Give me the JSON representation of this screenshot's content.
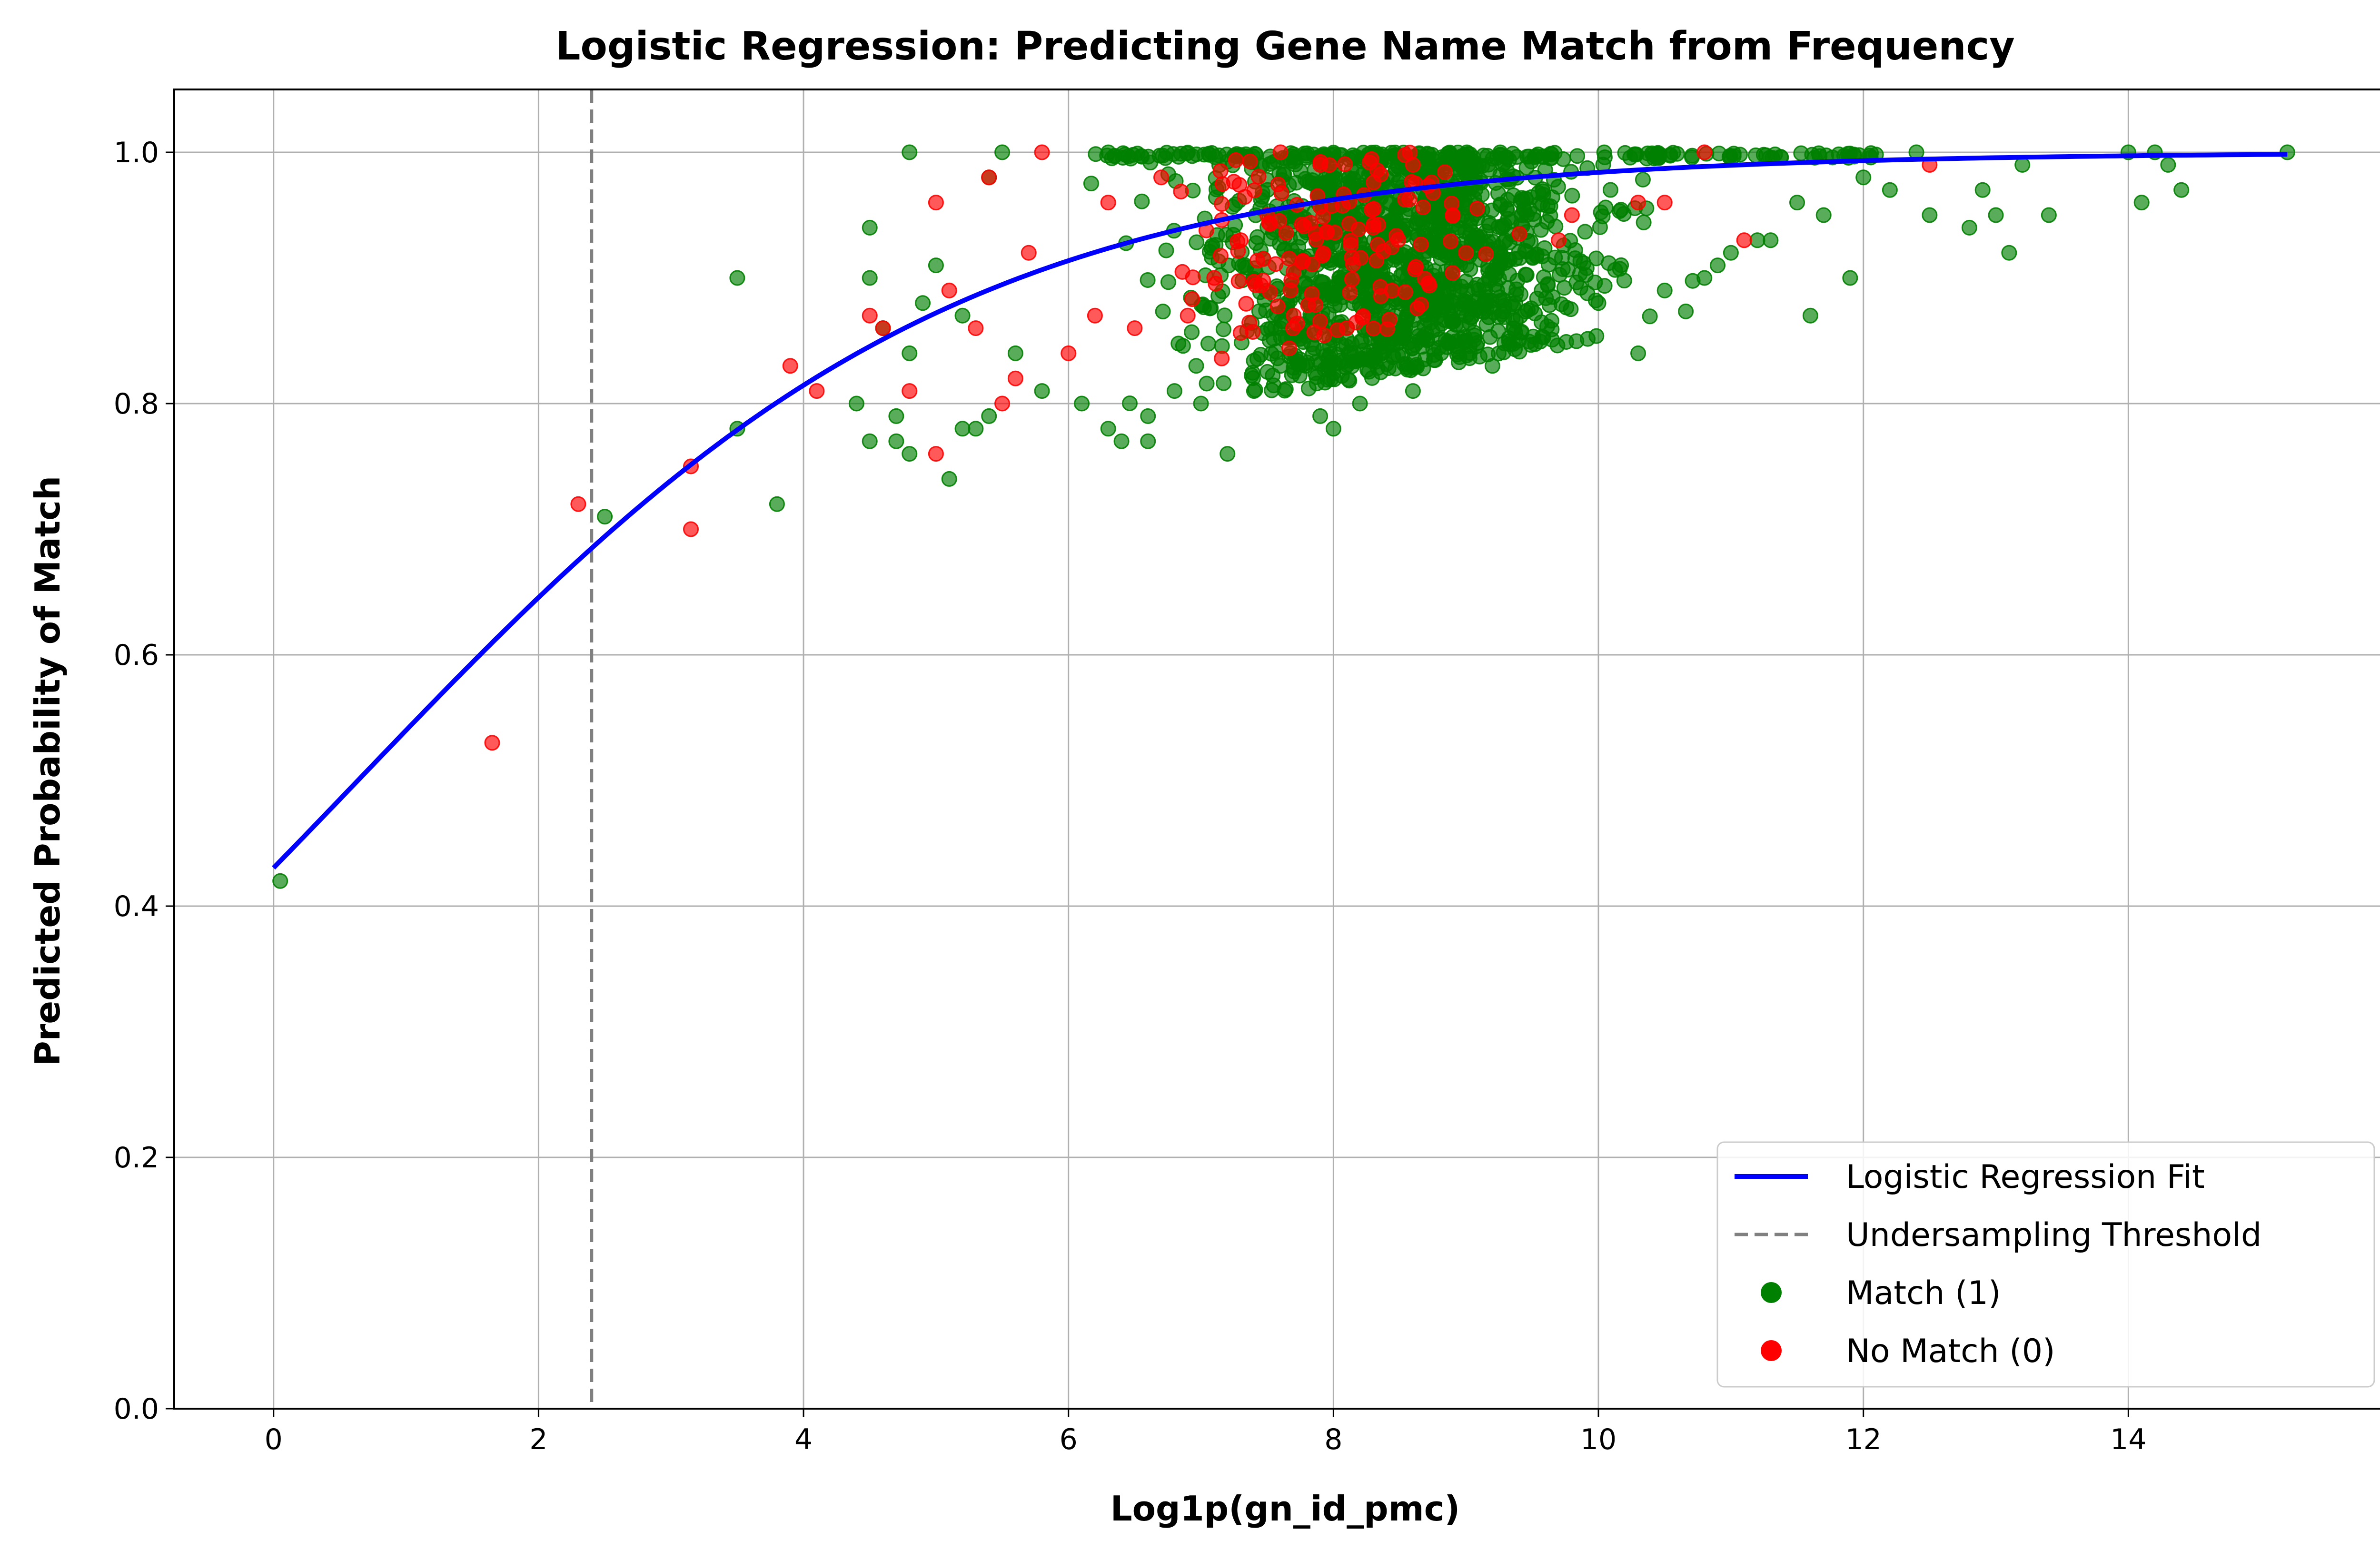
{
  "chart_data": {
    "type": "scatter",
    "title": "Logistic Regression: Predicting Gene Name Match from Frequency",
    "xlabel": "Log1p(gn_id_pmc)",
    "ylabel": "Predicted Probability of Match",
    "xlim": [
      -0.75,
      16.0
    ],
    "ylim": [
      0.0,
      1.05
    ],
    "xticks": [
      0,
      2,
      4,
      6,
      8,
      10,
      12,
      14
    ],
    "yticks": [
      0.0,
      0.2,
      0.4,
      0.6,
      0.8,
      1.0
    ],
    "xtick_labels": [
      "0",
      "2",
      "4",
      "6",
      "8",
      "10",
      "12",
      "14"
    ],
    "ytick_labels": [
      "0.0",
      "0.2",
      "0.4",
      "0.6",
      "0.8",
      "1.0"
    ],
    "grid": true,
    "legend_position": "bottom-right",
    "logistic_fit": {
      "intercept": -0.28,
      "slope": 0.44,
      "x_range": [
        0,
        15.2
      ]
    },
    "threshold_x": 2.4,
    "series": [
      {
        "name": "Logistic Regression Fit",
        "kind": "line",
        "color": "#0000ff"
      },
      {
        "name": "Undersampling Threshold",
        "kind": "dashed-line",
        "color": "#808080"
      },
      {
        "name": "Match (1)",
        "kind": "scatter",
        "color": "#008000",
        "points": [
          [
            0.05,
            0.42
          ],
          [
            2.5,
            0.71
          ],
          [
            3.5,
            0.9
          ],
          [
            3.5,
            0.78
          ],
          [
            3.8,
            0.72
          ],
          [
            4.4,
            0.8
          ],
          [
            4.5,
            0.77
          ],
          [
            4.5,
            0.9
          ],
          [
            4.6,
            0.86
          ],
          [
            4.7,
            0.79
          ],
          [
            4.7,
            0.77
          ],
          [
            4.8,
            0.76
          ],
          [
            4.8,
            1.0
          ],
          [
            4.5,
            0.94
          ],
          [
            5.1,
            0.74
          ],
          [
            5.2,
            0.78
          ],
          [
            5.3,
            0.78
          ],
          [
            5.4,
            0.79
          ],
          [
            5.5,
            1.0
          ],
          [
            5.4,
            0.98
          ],
          [
            5.0,
            0.91
          ],
          [
            4.9,
            0.88
          ],
          [
            4.8,
            0.84
          ],
          [
            5.2,
            0.87
          ],
          [
            5.6,
            0.84
          ],
          [
            5.8,
            0.81
          ],
          [
            6.1,
            0.8
          ],
          [
            6.3,
            0.78
          ],
          [
            6.4,
            0.77
          ],
          [
            6.6,
            0.79
          ],
          [
            6.6,
            0.77
          ],
          [
            6.8,
            0.81
          ],
          [
            7.0,
            0.8
          ],
          [
            7.2,
            0.76
          ],
          [
            7.4,
            0.81
          ],
          [
            7.6,
            0.83
          ],
          [
            7.9,
            0.79
          ],
          [
            8.0,
            0.78
          ],
          [
            8.2,
            0.8
          ],
          [
            8.6,
            0.81
          ],
          [
            9.2,
            0.83
          ],
          [
            9.4,
            0.85
          ],
          [
            10.0,
            0.88
          ],
          [
            10.3,
            0.84
          ],
          [
            10.5,
            0.89
          ],
          [
            10.9,
            0.91
          ],
          [
            11.0,
            0.92
          ],
          [
            11.3,
            0.93
          ],
          [
            11.6,
            0.87
          ],
          [
            11.9,
            0.9
          ],
          [
            12.0,
            0.98
          ],
          [
            12.2,
            0.97
          ],
          [
            12.4,
            1.0
          ],
          [
            12.5,
            0.95
          ],
          [
            12.8,
            0.94
          ],
          [
            12.9,
            0.97
          ],
          [
            13.0,
            0.95
          ],
          [
            13.1,
            0.92
          ],
          [
            13.2,
            0.99
          ],
          [
            13.4,
            0.95
          ],
          [
            14.0,
            1.0
          ],
          [
            14.1,
            0.96
          ],
          [
            14.2,
            1.0
          ],
          [
            14.3,
            0.99
          ],
          [
            14.4,
            0.97
          ],
          [
            15.2,
            1.0
          ],
          [
            10.8,
            0.9
          ],
          [
            11.2,
            0.93
          ],
          [
            11.5,
            0.96
          ],
          [
            11.7,
            0.95
          ]
        ]
      },
      {
        "name": "No Match (0)",
        "kind": "scatter",
        "color": "#ff0000",
        "points": [
          [
            1.65,
            0.53
          ],
          [
            2.3,
            0.72
          ],
          [
            3.15,
            0.7
          ],
          [
            3.15,
            0.75
          ],
          [
            3.9,
            0.83
          ],
          [
            4.1,
            0.81
          ],
          [
            4.5,
            0.87
          ],
          [
            4.6,
            0.86
          ],
          [
            4.8,
            0.81
          ],
          [
            5.0,
            0.76
          ],
          [
            5.0,
            0.96
          ],
          [
            5.1,
            0.89
          ],
          [
            5.3,
            0.86
          ],
          [
            5.4,
            0.98
          ],
          [
            5.5,
            0.8
          ],
          [
            5.6,
            0.82
          ],
          [
            5.7,
            0.92
          ],
          [
            5.8,
            1.0
          ],
          [
            6.0,
            0.84
          ],
          [
            6.2,
            0.87
          ],
          [
            6.3,
            0.96
          ],
          [
            6.5,
            0.86
          ],
          [
            6.9,
            0.87
          ],
          [
            7.1,
            0.9
          ],
          [
            7.3,
            0.93
          ],
          [
            7.5,
            0.95
          ],
          [
            7.7,
            0.87
          ],
          [
            7.9,
            0.99
          ],
          [
            8.1,
            0.86
          ],
          [
            8.3,
            0.94
          ],
          [
            8.6,
            0.99
          ],
          [
            8.9,
            0.95
          ],
          [
            9.0,
            0.92
          ],
          [
            9.7,
            0.93
          ],
          [
            9.8,
            0.95
          ],
          [
            10.3,
            0.96
          ],
          [
            10.5,
            0.96
          ],
          [
            10.8,
            1.0
          ],
          [
            11.1,
            0.93
          ],
          [
            12.5,
            0.99
          ],
          [
            6.7,
            0.98
          ],
          [
            7.6,
            1.0
          ]
        ]
      }
    ]
  }
}
